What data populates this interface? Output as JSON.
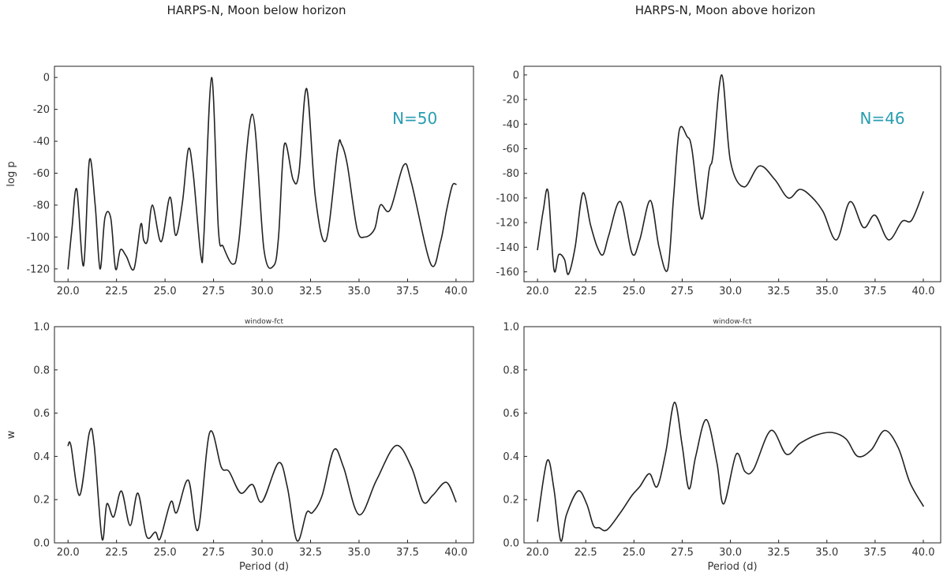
{
  "figure": {
    "columns": [
      {
        "title": "HARPS-N, Moon below horizon"
      },
      {
        "title": "HARPS-N, Moon above horizon"
      }
    ]
  },
  "colors": {
    "line": "#222222",
    "annotation": "#2a9db0"
  },
  "chart_data": [
    {
      "id": "logp-below",
      "type": "line",
      "title": "",
      "xlabel": "",
      "ylabel": "log p",
      "xlim": [
        19.3,
        40.9
      ],
      "ylim": [
        -128,
        7
      ],
      "xticks": [
        "20.0",
        "22.5",
        "25.0",
        "27.5",
        "30.0",
        "32.5",
        "35.0",
        "37.5",
        "40.0"
      ],
      "yticks": [
        "-120",
        "-100",
        "-80",
        "-60",
        "-40",
        "-20",
        "0"
      ],
      "annotation": "N=50",
      "grid": false,
      "x": [
        20.0,
        20.2,
        20.45,
        20.8,
        21.1,
        21.4,
        21.65,
        21.9,
        22.2,
        22.45,
        22.7,
        23.0,
        23.4,
        23.75,
        23.9,
        24.1,
        24.35,
        24.8,
        25.25,
        25.55,
        25.9,
        26.2,
        26.45,
        26.85,
        27.0,
        27.4,
        27.75,
        28.0,
        28.5,
        28.8,
        29.5,
        30.1,
        30.6,
        30.85,
        31.15,
        31.6,
        31.9,
        32.3,
        32.75,
        33.3,
        33.9,
        34.1,
        34.4,
        34.9,
        35.3,
        35.8,
        36.1,
        36.6,
        37.3,
        37.7,
        38.7,
        39.2,
        39.5,
        39.8,
        40.0
      ],
      "y": [
        -120,
        -95,
        -70,
        -118,
        -52,
        -80,
        -120,
        -88,
        -88,
        -120,
        -108,
        -112,
        -120,
        -92,
        -102,
        -102,
        -80,
        -103,
        -75,
        -99,
        -78,
        -45,
        -60,
        -112,
        -100,
        0,
        -95,
        -106,
        -117,
        -103,
        -23,
        -108,
        -118,
        -100,
        -42,
        -64,
        -60,
        -7,
        -75,
        -102,
        -45,
        -42,
        -55,
        -95,
        -100,
        -95,
        -80,
        -83,
        -55,
        -66,
        -117,
        -103,
        -84,
        -68,
        -67
      ]
    },
    {
      "id": "logp-above",
      "type": "line",
      "title": "",
      "xlabel": "",
      "ylabel": "",
      "xlim": [
        19.3,
        40.9
      ],
      "ylim": [
        -168,
        7
      ],
      "xticks": [
        "20.0",
        "22.5",
        "25.0",
        "27.5",
        "30.0",
        "32.5",
        "35.0",
        "37.5",
        "40.0"
      ],
      "yticks": [
        "-160",
        "-140",
        "-120",
        "-100",
        "-80",
        "-60",
        "-40",
        "-20",
        "0"
      ],
      "annotation": "N=46",
      "grid": false,
      "x": [
        20.0,
        20.3,
        20.55,
        20.85,
        21.1,
        21.4,
        21.6,
        21.95,
        22.35,
        22.75,
        23.1,
        23.4,
        23.7,
        24.3,
        24.9,
        25.3,
        25.85,
        26.3,
        26.75,
        27.05,
        27.35,
        27.75,
        28.0,
        28.5,
        28.9,
        29.1,
        29.55,
        30.0,
        30.7,
        31.5,
        32.3,
        33.0,
        33.6,
        34.2,
        34.8,
        35.5,
        36.2,
        36.9,
        37.5,
        38.2,
        38.9,
        39.4,
        40.0
      ],
      "y": [
        -142,
        -110,
        -95,
        -158,
        -146,
        -150,
        -162,
        -140,
        -96,
        -122,
        -140,
        -146,
        -130,
        -103,
        -145,
        -134,
        -102,
        -140,
        -158,
        -100,
        -45,
        -50,
        -60,
        -117,
        -77,
        -65,
        0,
        -70,
        -91,
        -74,
        -85,
        -100,
        -93,
        -99,
        -111,
        -134,
        -103,
        -124,
        -114,
        -134,
        -119,
        -118,
        -95
      ]
    },
    {
      "id": "window-below",
      "type": "line",
      "title": "window-fct",
      "xlabel": "Period (d)",
      "ylabel": "w",
      "xlim": [
        19.3,
        40.9
      ],
      "ylim": [
        0.0,
        1.0
      ],
      "xticks": [
        "20.0",
        "22.5",
        "25.0",
        "27.5",
        "30.0",
        "32.5",
        "35.0",
        "37.5",
        "40.0"
      ],
      "yticks": [
        "0.0",
        "0.2",
        "0.4",
        "0.6",
        "0.8",
        "1.0"
      ],
      "annotation": "",
      "grid": false,
      "x": [
        20.0,
        20.15,
        20.6,
        21.1,
        21.35,
        21.75,
        22.0,
        22.35,
        22.75,
        23.2,
        23.6,
        24.05,
        24.5,
        24.75,
        25.3,
        25.6,
        26.2,
        26.7,
        27.3,
        27.9,
        28.3,
        28.9,
        29.5,
        30.0,
        30.85,
        31.3,
        31.8,
        32.3,
        32.6,
        33.1,
        33.7,
        34.2,
        35.0,
        35.9,
        36.9,
        37.7,
        38.3,
        38.8,
        39.5,
        40.0
      ],
      "y": [
        0.45,
        0.45,
        0.22,
        0.51,
        0.45,
        0.02,
        0.18,
        0.12,
        0.24,
        0.08,
        0.23,
        0.03,
        0.05,
        0.02,
        0.19,
        0.14,
        0.29,
        0.06,
        0.51,
        0.35,
        0.33,
        0.23,
        0.27,
        0.19,
        0.37,
        0.26,
        0.01,
        0.14,
        0.14,
        0.22,
        0.43,
        0.35,
        0.13,
        0.29,
        0.45,
        0.35,
        0.19,
        0.22,
        0.28,
        0.19
      ]
    },
    {
      "id": "window-above",
      "type": "line",
      "title": "window-fct",
      "xlabel": "Period (d)",
      "ylabel": "",
      "xlim": [
        19.3,
        40.9
      ],
      "ylim": [
        0.0,
        1.0
      ],
      "xticks": [
        "20.0",
        "22.5",
        "25.0",
        "27.5",
        "30.0",
        "32.5",
        "35.0",
        "37.5",
        "40.0"
      ],
      "yticks": [
        "0.0",
        "0.2",
        "0.4",
        "0.6",
        "0.8",
        "1.0"
      ],
      "annotation": "",
      "grid": false,
      "x": [
        20.0,
        20.5,
        20.85,
        21.2,
        21.5,
        22.1,
        22.55,
        22.9,
        23.2,
        23.6,
        24.3,
        24.9,
        25.3,
        25.8,
        26.2,
        26.65,
        27.1,
        27.5,
        27.85,
        28.2,
        28.75,
        29.3,
        29.65,
        30.3,
        30.75,
        31.2,
        32.1,
        32.9,
        33.6,
        34.5,
        35.3,
        36.0,
        36.6,
        37.3,
        38.0,
        38.7,
        39.3,
        40.0
      ],
      "y": [
        0.1,
        0.38,
        0.25,
        0.01,
        0.13,
        0.24,
        0.18,
        0.08,
        0.07,
        0.06,
        0.14,
        0.22,
        0.26,
        0.32,
        0.26,
        0.42,
        0.65,
        0.45,
        0.25,
        0.4,
        0.57,
        0.37,
        0.18,
        0.41,
        0.33,
        0.34,
        0.52,
        0.41,
        0.46,
        0.5,
        0.51,
        0.48,
        0.4,
        0.43,
        0.52,
        0.44,
        0.28,
        0.17
      ]
    }
  ]
}
